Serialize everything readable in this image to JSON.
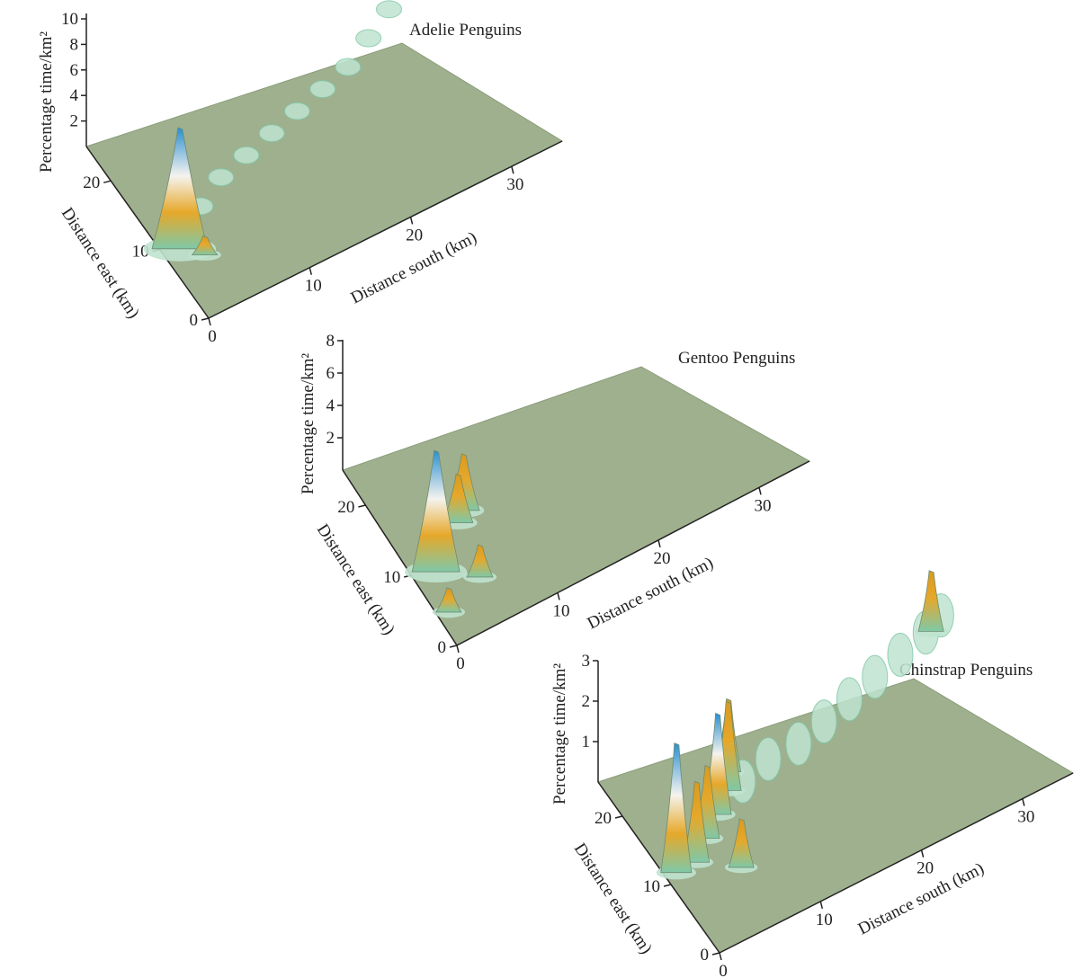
{
  "colors": {
    "surface": "#9fb08e",
    "surface_edge": "#8a9c79",
    "low": "#bfe3cf",
    "mid": "#7fc8a8",
    "high": "#e6a82a",
    "peak_white": "#f5f3ee",
    "peak_blue": "#2a8fd0"
  },
  "chart_data": [
    {
      "type": "surface",
      "title": "Adelie Penguins",
      "zlabel": "Percentage time/km²",
      "ylabel": "Distance east (km)",
      "xlabel": "Distance south (km)",
      "z_ticks": [
        "2",
        "4",
        "6",
        "8",
        "10"
      ],
      "y_ticks": [
        "0",
        "10",
        "20"
      ],
      "x_ticks": [
        "0",
        "10",
        "20",
        "30"
      ],
      "peaks": [
        {
          "south": 1.5,
          "east": 9,
          "height": 9.5
        },
        {
          "south": 2.5,
          "east": 9.5,
          "height": 3.5
        },
        {
          "south": 3,
          "east": 7,
          "height": 1.5
        }
      ],
      "trail": [
        [
          2,
          10
        ],
        [
          5,
          12
        ],
        [
          8,
          14
        ],
        [
          11,
          15
        ],
        [
          14,
          16
        ],
        [
          17,
          17
        ],
        [
          20,
          18
        ],
        [
          23,
          19
        ],
        [
          26,
          21
        ],
        [
          29,
          23
        ],
        [
          32,
          25
        ],
        [
          33,
          27
        ]
      ],
      "trail_height": 0.5
    },
    {
      "type": "surface",
      "title": "Gentoo Penguins",
      "zlabel": "Percentage time/km²",
      "ylabel": "Distance east (km)",
      "xlabel": "Distance south (km)",
      "z_ticks": [
        "2",
        "4",
        "6",
        "8"
      ],
      "y_ticks": [
        "0",
        "10",
        "20"
      ],
      "x_ticks": [
        "0",
        "10",
        "20",
        "30"
      ],
      "peaks": [
        {
          "south": 2,
          "east": 9,
          "height": 7.5
        },
        {
          "south": 6,
          "east": 13,
          "height": 3
        },
        {
          "south": 7,
          "east": 14,
          "height": 3.5
        },
        {
          "south": 5,
          "east": 6,
          "height": 2
        },
        {
          "south": 1,
          "east": 4,
          "height": 1.5
        }
      ],
      "trail": [],
      "trail_height": 0
    },
    {
      "type": "surface",
      "title": "Chinstrap Penguins",
      "zlabel": "Percentage time/km²",
      "ylabel": "Distance east (km)",
      "xlabel": "Distance south (km)",
      "z_ticks": [
        "1",
        "2",
        "3"
      ],
      "y_ticks": [
        "0",
        "10",
        "20"
      ],
      "x_ticks": [
        "0",
        "10",
        "20",
        "30"
      ],
      "peaks": [
        {
          "south": 1,
          "east": 11,
          "height": 3.2
        },
        {
          "south": 3,
          "east": 11,
          "height": 2
        },
        {
          "south": 5,
          "east": 13,
          "height": 1.8
        },
        {
          "south": 7,
          "east": 15,
          "height": 2.5
        },
        {
          "south": 9,
          "east": 17,
          "height": 2.2
        },
        {
          "south": 10,
          "east": 19,
          "height": 1.8
        },
        {
          "south": 6,
          "east": 8,
          "height": 1.2
        },
        {
          "south": 32,
          "east": 23,
          "height": 1.5
        }
      ],
      "trail": [
        [
          10,
          16
        ],
        [
          13,
          17
        ],
        [
          16,
          17
        ],
        [
          19,
          18
        ],
        [
          22,
          19
        ],
        [
          25,
          20
        ],
        [
          28,
          21
        ],
        [
          31,
          22
        ],
        [
          33,
          23
        ]
      ],
      "trail_height": 0.4
    }
  ]
}
